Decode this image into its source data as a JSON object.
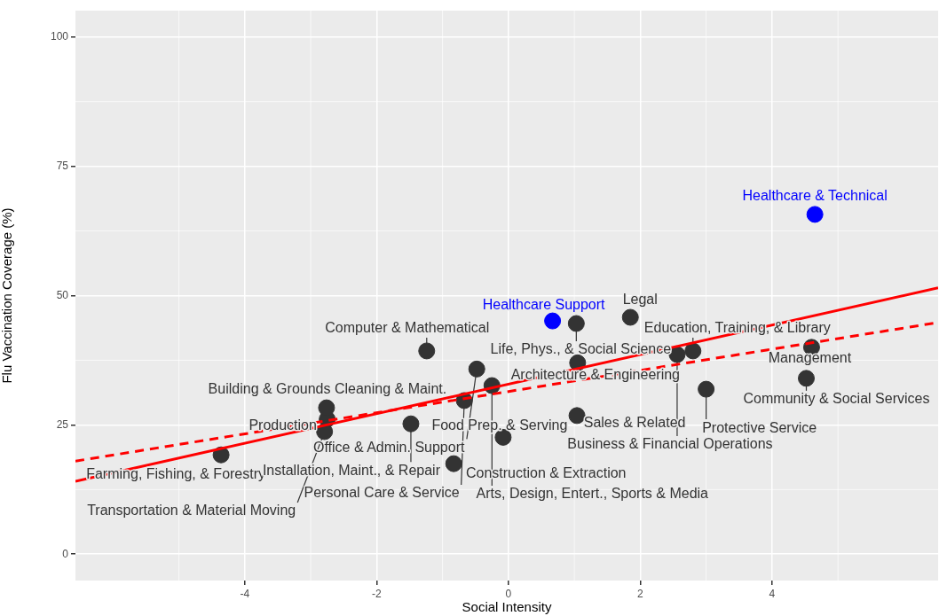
{
  "chart_data": {
    "type": "scatter",
    "xlabel": "Social Intensity",
    "ylabel": "Flu Vaccination Coverage (%)",
    "xlim": [
      -6.57,
      6.52
    ],
    "xticks": [
      -4,
      -2,
      0,
      2,
      4
    ],
    "ylim": [
      -5.1,
      105.1
    ],
    "yticks": [
      0,
      25,
      50,
      75,
      100
    ],
    "grid": true,
    "series": [
      {
        "marker": "circle",
        "color": "#333333",
        "x": [
          -4.36,
          -2.79,
          -2.75,
          -2.76,
          -1.48,
          -1.24,
          -0.83,
          -0.67,
          -0.48,
          -0.25,
          -0.08,
          1.03,
          1.04,
          1.05,
          1.85,
          2.56,
          2.8,
          3.0,
          4.52,
          4.6
        ],
        "values": [
          19.2,
          23.7,
          26.1,
          28.3,
          25.2,
          39.3,
          17.5,
          29.7,
          35.8,
          32.6,
          22.6,
          44.6,
          26.8,
          37.0,
          45.8,
          38.6,
          39.3,
          31.9,
          34.0,
          40.0
        ]
      },
      {
        "marker": "circle",
        "color": "#0000ff",
        "x": [
          0.67,
          4.65
        ],
        "values": [
          45.1,
          65.7
        ]
      },
      {
        "type": "line",
        "marker": "none",
        "color": "#ff0000",
        "line_style": "solid",
        "x": [
          -6.57,
          6.52
        ],
        "values": [
          14.1,
          51.5
        ]
      },
      {
        "type": "line",
        "marker": "none",
        "color": "#ff0000",
        "line_style": "dashed",
        "x": [
          -6.57,
          6.52
        ],
        "values": [
          18.0,
          44.8
        ]
      }
    ],
    "annotations": [
      {
        "text": "Farming, Fishing, & Forestry",
        "x": -4.36,
        "y": 19.2
      },
      {
        "text": "Transportation & Material Moving",
        "x": -2.79,
        "y": 23.7
      },
      {
        "text": "Production",
        "x": -2.75,
        "y": 26.1
      },
      {
        "text": "Building & Grounds Cleaning & Maint.",
        "x": -2.76,
        "y": 28.3
      },
      {
        "text": "Installation, Maint., & Repair",
        "x": -1.48,
        "y": 25.2
      },
      {
        "text": "Computer & Mathematical",
        "x": -1.24,
        "y": 39.3
      },
      {
        "text": "Construction & Extraction",
        "x": -0.83,
        "y": 17.5
      },
      {
        "text": "Personal Care & Service",
        "x": -0.67,
        "y": 29.7
      },
      {
        "text": "Office & Admin. Support",
        "x": -0.48,
        "y": 35.8
      },
      {
        "text": "Arts, Design, Entert., Sports & Media",
        "x": -0.25,
        "y": 32.6
      },
      {
        "text": "Food Prep. & Serving",
        "x": -0.08,
        "y": 22.6
      },
      {
        "text": "Life, Phys., & Social Science",
        "x": 1.03,
        "y": 44.6
      },
      {
        "text": "Sales & Related",
        "x": 1.04,
        "y": 26.8
      },
      {
        "text": "Architecture & Engineering",
        "x": 1.05,
        "y": 37.0
      },
      {
        "text": "Legal",
        "x": 1.85,
        "y": 45.8
      },
      {
        "text": "Business & Financial Operations",
        "x": 2.56,
        "y": 38.6
      },
      {
        "text": "Education, Training, & Library",
        "x": 2.8,
        "y": 39.3
      },
      {
        "text": "Protective Service",
        "x": 3.0,
        "y": 31.9
      },
      {
        "text": "Community & Social Services",
        "x": 4.52,
        "y": 34.0
      },
      {
        "text": "Management",
        "x": 4.6,
        "y": 40.0
      },
      {
        "text": "Healthcare Support",
        "x": 0.67,
        "y": 45.1
      },
      {
        "text": "Healthcare & Technical",
        "x": 4.65,
        "y": 65.7
      }
    ]
  }
}
